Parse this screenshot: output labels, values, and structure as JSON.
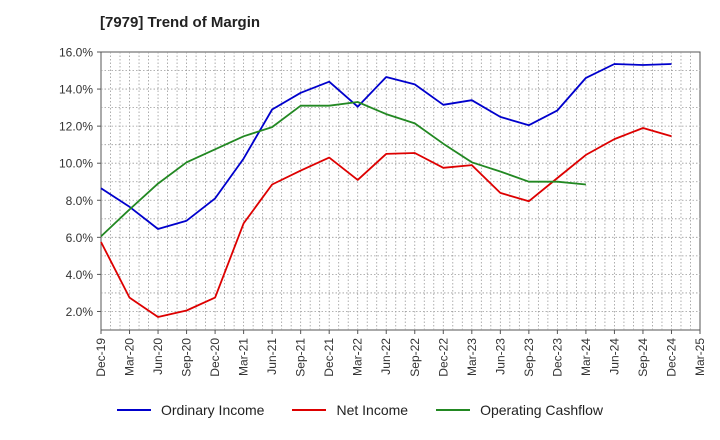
{
  "chart_data": {
    "type": "line",
    "title": "[7979]  Trend of Margin",
    "x": [
      "Dec-19",
      "Mar-20",
      "Jun-20",
      "Sep-20",
      "Dec-20",
      "Mar-21",
      "Jun-21",
      "Sep-21",
      "Dec-21",
      "Mar-22",
      "Jun-22",
      "Sep-22",
      "Dec-22",
      "Mar-23",
      "Jun-23",
      "Sep-23",
      "Dec-23",
      "Mar-24",
      "Jun-24",
      "Sep-24",
      "Dec-24",
      "Mar-25"
    ],
    "ylim": [
      1.0,
      16.0
    ],
    "yticks": [
      2.0,
      4.0,
      6.0,
      8.0,
      10.0,
      12.0,
      14.0,
      16.0
    ],
    "ytick_labels": [
      "2.0%",
      "4.0%",
      "6.0%",
      "8.0%",
      "10.0%",
      "12.0%",
      "14.0%",
      "16.0%"
    ],
    "grid": true,
    "legend_position": "bottom",
    "series": [
      {
        "name": "Ordinary Income",
        "color": "#0000cc",
        "values": [
          8.65,
          7.65,
          6.45,
          6.9,
          8.1,
          10.25,
          12.9,
          13.8,
          14.4,
          13.05,
          14.65,
          14.25,
          13.15,
          13.4,
          12.5,
          12.05,
          12.85,
          14.6,
          15.35,
          15.3,
          15.35,
          null
        ]
      },
      {
        "name": "Net Income",
        "color": "#dd0000",
        "values": [
          5.75,
          2.75,
          1.7,
          2.05,
          2.75,
          6.75,
          8.85,
          9.6,
          10.3,
          9.1,
          10.5,
          10.55,
          9.75,
          9.9,
          8.4,
          7.95,
          9.2,
          10.45,
          11.3,
          11.9,
          11.45,
          null
        ]
      },
      {
        "name": "Operating Cashflow",
        "color": "#228822",
        "values": [
          6.05,
          7.5,
          8.9,
          10.05,
          10.75,
          11.45,
          11.95,
          13.1,
          13.1,
          13.3,
          12.65,
          12.15,
          11.05,
          10.05,
          9.55,
          9.0,
          9.0,
          8.85,
          null,
          null,
          null,
          null
        ]
      }
    ]
  }
}
